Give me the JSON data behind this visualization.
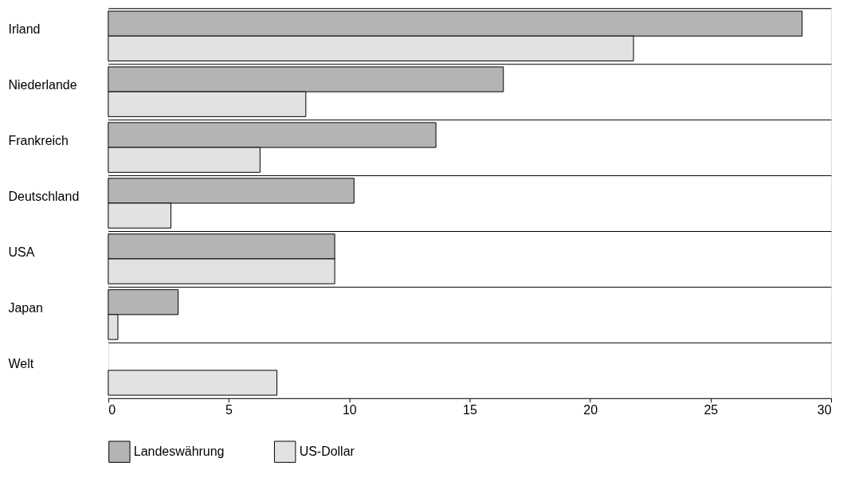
{
  "chart_data": {
    "type": "bar",
    "orientation": "horizontal",
    "categories": [
      "Irland",
      "Niederlande",
      "Frankreich",
      "Deutschland",
      "USA",
      "Japan",
      "Welt"
    ],
    "series": [
      {
        "name": "Landeswährung",
        "color": "#b4b4b4",
        "values": [
          28.8,
          16.4,
          13.6,
          10.2,
          9.4,
          2.9,
          null
        ]
      },
      {
        "name": "US-Dollar",
        "color": "#e2e2e2",
        "values": [
          21.8,
          8.2,
          6.3,
          2.6,
          9.4,
          0.4,
          7.0
        ]
      }
    ],
    "xlim": [
      0,
      30
    ],
    "xticks": [
      0,
      5,
      10,
      15,
      20,
      25,
      30
    ],
    "grid": "y",
    "legend": "bottom"
  }
}
